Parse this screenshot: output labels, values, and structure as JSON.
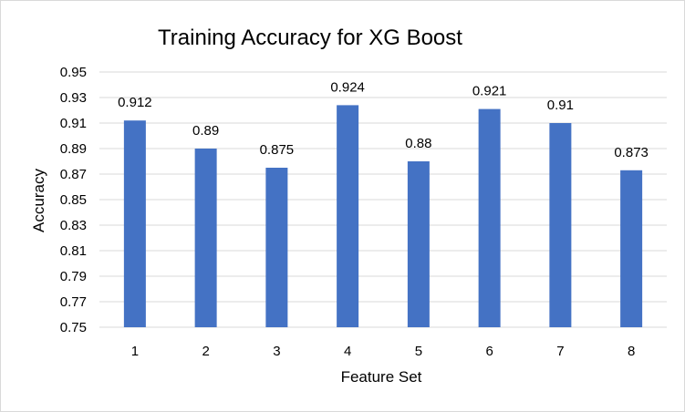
{
  "chart_data": {
    "type": "bar",
    "title": "Training Accuracy for XG Boost",
    "xlabel": "Feature Set",
    "ylabel": "Accuracy",
    "categories": [
      "1",
      "2",
      "3",
      "4",
      "5",
      "6",
      "7",
      "8"
    ],
    "values": [
      0.912,
      0.89,
      0.875,
      0.924,
      0.88,
      0.921,
      0.91,
      0.873
    ],
    "data_labels": [
      "0.912",
      "0.89",
      "0.875",
      "0.924",
      "0.88",
      "0.921",
      "0.91",
      "0.873"
    ],
    "ylim": [
      0.75,
      0.95
    ],
    "y_ticks": [
      "0.75",
      "0.77",
      "0.79",
      "0.81",
      "0.83",
      "0.85",
      "0.87",
      "0.89",
      "0.91",
      "0.93",
      "0.95"
    ],
    "grid": true,
    "legend": "none",
    "bar_color": "#4472C4",
    "grid_color": "#d9d9d9"
  }
}
